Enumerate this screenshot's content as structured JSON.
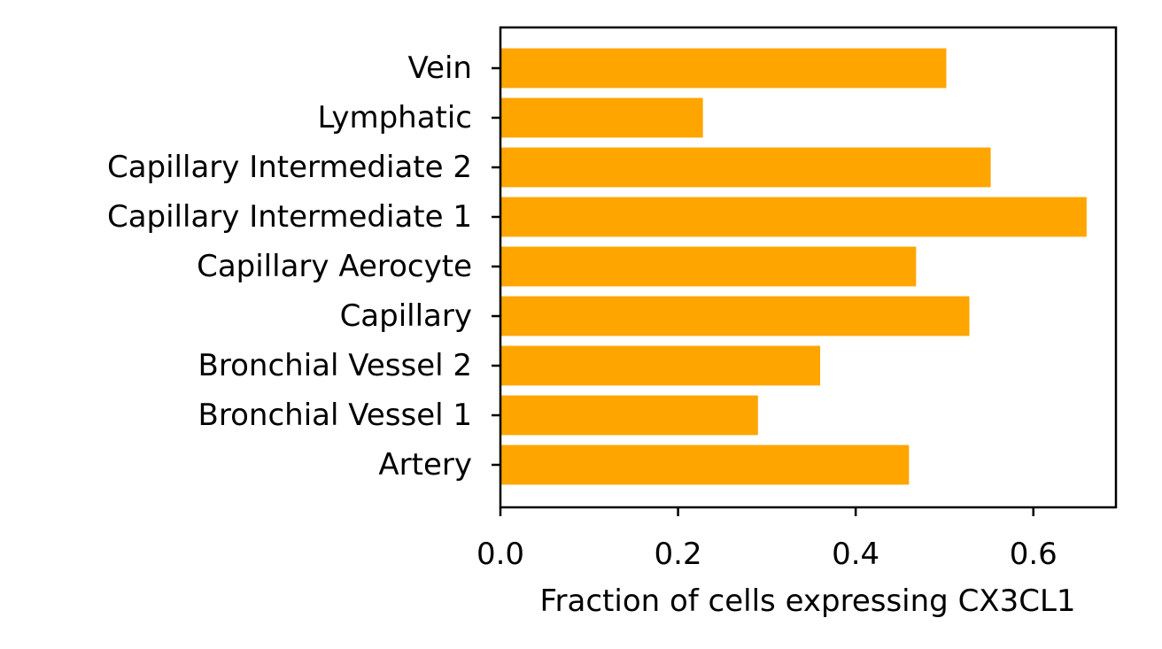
{
  "chart_data": {
    "type": "bar",
    "orientation": "horizontal",
    "title": "",
    "xlabel": "Fraction of cells expressing CX3CL1",
    "ylabel": "",
    "categories": [
      "Artery",
      "Bronchial Vessel 1",
      "Bronchial Vessel 2",
      "Capillary",
      "Capillary Aerocyte",
      "Capillary Intermediate 1",
      "Capillary Intermediate 2",
      "Lymphatic",
      "Vein"
    ],
    "values": [
      0.46,
      0.29,
      0.36,
      0.528,
      0.468,
      0.66,
      0.552,
      0.228,
      0.502
    ],
    "xlim": [
      0,
      0.693
    ],
    "xticks": [
      0.0,
      0.2,
      0.4,
      0.6
    ],
    "xtick_labels": [
      "0.0",
      "0.2",
      "0.4",
      "0.6"
    ],
    "bar_color": "#FFA500",
    "grid": false,
    "legend": "none"
  }
}
